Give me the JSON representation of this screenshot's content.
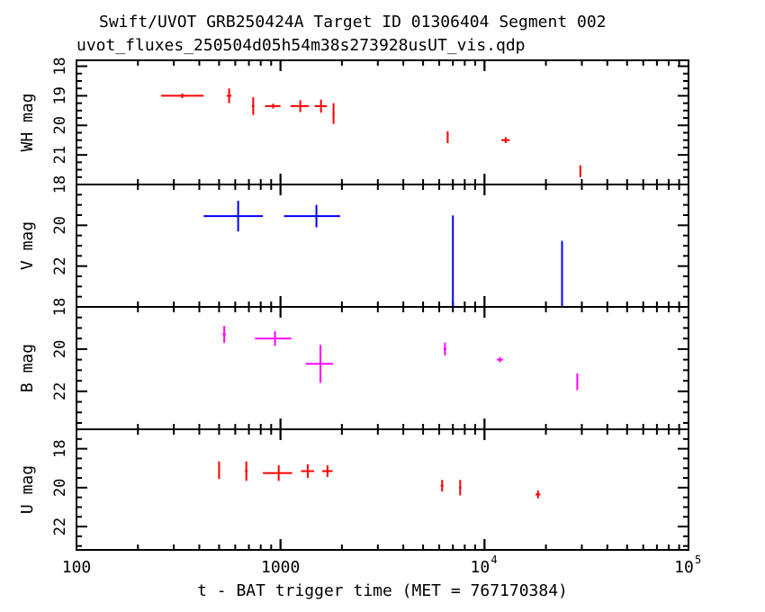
{
  "title": "Swift/UVOT GRB250424A Target ID 01306404 Segment 002",
  "subtitle": "uvot_fluxes_250504d05h54m38s273928usUT_vis.qdp",
  "xlabel": "t - BAT trigger time (MET = 767170384)",
  "x_ticks": [
    {
      "value": 100,
      "label": "100"
    },
    {
      "value": 1000,
      "label": "1000"
    },
    {
      "value": 10000,
      "label": "10",
      "exp": "4"
    },
    {
      "value": 100000,
      "label": "10",
      "exp": "5"
    }
  ],
  "chart_data": [
    {
      "type": "scatter",
      "ylabel": "WH mag",
      "color": "#ff0000",
      "xscale": "log",
      "xlim": [
        100,
        100000
      ],
      "ylim": [
        17.8,
        22.0
      ],
      "y_inverted": true,
      "y_ticks": [
        18,
        19,
        20,
        21
      ],
      "points": [
        {
          "x": 330,
          "xlo": 260,
          "xhi": 420,
          "y": 19.0,
          "yerr": 0.08
        },
        {
          "x": 560,
          "xlo": 545,
          "xhi": 575,
          "y": 19.0,
          "yerr": 0.25
        },
        {
          "x": 735,
          "xlo": 725,
          "xhi": 745,
          "y": 19.35,
          "yerr": 0.3
        },
        {
          "x": 920,
          "xlo": 840,
          "xhi": 1000,
          "y": 19.35,
          "yerr": 0.08
        },
        {
          "x": 1250,
          "xlo": 1120,
          "xhi": 1380,
          "y": 19.35,
          "yerr": 0.2
        },
        {
          "x": 1580,
          "xlo": 1470,
          "xhi": 1690,
          "y": 19.35,
          "yerr": 0.22
        },
        {
          "x": 1820,
          "xlo": 1800,
          "xhi": 1840,
          "y": 19.6,
          "yerr": 0.35
        },
        {
          "x": 6600,
          "xlo": 6550,
          "xhi": 6650,
          "y": 20.4,
          "yerr": 0.2
        },
        {
          "x": 12700,
          "xlo": 12100,
          "xhi": 13300,
          "y": 20.5,
          "yerr": 0.1
        },
        {
          "x": 29500,
          "xlo": 29300,
          "xhi": 29700,
          "y": 21.55,
          "yerr": 0.2
        }
      ]
    },
    {
      "type": "scatter",
      "ylabel": "V mag",
      "color": "#0000ff",
      "xscale": "log",
      "xlim": [
        100,
        100000
      ],
      "ylim": [
        18.0,
        24.0
      ],
      "y_inverted": true,
      "y_ticks": [
        18,
        20,
        22
      ],
      "points": [
        {
          "x": 620,
          "xlo": 420,
          "xhi": 820,
          "y": 19.55,
          "yerr": 0.75
        },
        {
          "x": 1500,
          "xlo": 1040,
          "xhi": 1960,
          "y": 19.55,
          "yerr": 0.55
        },
        {
          "x": 7000,
          "xlo": 6950,
          "xhi": 7050,
          "y": 19.55,
          "yup": 4.5,
          "upper_limit": true
        },
        {
          "x": 24000,
          "xlo": 23800,
          "xhi": 24200,
          "y": 20.8,
          "yup": 3.2,
          "upper_limit": true
        }
      ]
    },
    {
      "type": "scatter",
      "ylabel": "B mag",
      "color": "#ff00ff",
      "xscale": "log",
      "xlim": [
        100,
        100000
      ],
      "ylim": [
        18.0,
        23.8
      ],
      "y_inverted": true,
      "y_ticks": [
        18,
        20,
        22
      ],
      "points": [
        {
          "x": 530,
          "xlo": 520,
          "xhi": 540,
          "y": 19.3,
          "yerr": 0.4
        },
        {
          "x": 940,
          "xlo": 750,
          "xhi": 1130,
          "y": 19.5,
          "yerr": 0.35
        },
        {
          "x": 1570,
          "xlo": 1330,
          "xhi": 1810,
          "y": 20.7,
          "yerr": 0.9
        },
        {
          "x": 6400,
          "xlo": 6300,
          "xhi": 6500,
          "y": 20.0,
          "yerr": 0.3
        },
        {
          "x": 11900,
          "xlo": 11500,
          "xhi": 12300,
          "y": 20.5,
          "yerr": 0.12
        },
        {
          "x": 28500,
          "xlo": 28300,
          "xhi": 28700,
          "y": 21.55,
          "yerr": 0.4
        }
      ]
    },
    {
      "type": "scatter",
      "ylabel": "U mag",
      "color": "#ff0000",
      "xscale": "log",
      "xlim": [
        100,
        100000
      ],
      "ylim": [
        17.0,
        23.2
      ],
      "y_inverted": true,
      "y_ticks": [
        18,
        20,
        22
      ],
      "points": [
        {
          "x": 500,
          "xlo": 495,
          "xhi": 505,
          "y": 19.1,
          "yerr": 0.45
        },
        {
          "x": 680,
          "xlo": 670,
          "xhi": 690,
          "y": 19.15,
          "yerr": 0.5
        },
        {
          "x": 980,
          "xlo": 820,
          "xhi": 1140,
          "y": 19.25,
          "yerr": 0.4
        },
        {
          "x": 1360,
          "xlo": 1260,
          "xhi": 1460,
          "y": 19.15,
          "yerr": 0.35
        },
        {
          "x": 1700,
          "xlo": 1600,
          "xhi": 1800,
          "y": 19.15,
          "yerr": 0.3
        },
        {
          "x": 6200,
          "xlo": 6100,
          "xhi": 6300,
          "y": 19.9,
          "yerr": 0.3
        },
        {
          "x": 7600,
          "xlo": 7500,
          "xhi": 7700,
          "y": 20.0,
          "yerr": 0.4
        },
        {
          "x": 18300,
          "xlo": 17800,
          "xhi": 18800,
          "y": 20.35,
          "yerr": 0.2
        }
      ]
    }
  ]
}
